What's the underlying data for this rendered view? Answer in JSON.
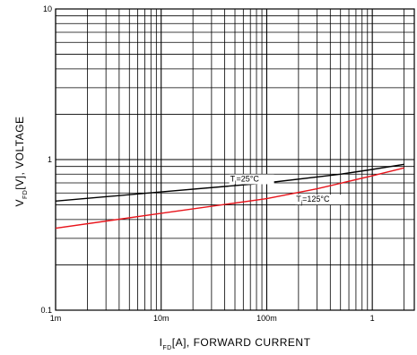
{
  "chart_data": {
    "type": "line",
    "title": "",
    "xlabel": {
      "main": "I",
      "sub": "FD",
      "rest": "[A], FORWARD CURRENT"
    },
    "ylabel": {
      "main": "V",
      "sub": "FD",
      "rest": "[V], VOLTAGE"
    },
    "x_scale": "log",
    "y_scale": "log",
    "xlim": [
      0.001,
      2.5
    ],
    "ylim": [
      0.1,
      10
    ],
    "x_ticks": [
      {
        "value": 0.001,
        "label": "1m"
      },
      {
        "value": 0.01,
        "label": "10m"
      },
      {
        "value": 0.1,
        "label": "100m"
      },
      {
        "value": 1,
        "label": "1"
      }
    ],
    "y_ticks": [
      {
        "value": 0.1,
        "label": "0.1"
      },
      {
        "value": 1,
        "label": "1"
      },
      {
        "value": 10,
        "label": "10"
      }
    ],
    "grid": true,
    "series": [
      {
        "name": "Tj=25°C",
        "color": "#000000",
        "x": [
          0.001,
          0.01,
          0.1,
          0.5,
          1,
          2
        ],
        "y": [
          0.53,
          0.61,
          0.7,
          0.8,
          0.86,
          0.93
        ]
      },
      {
        "name": "Tj=125°C",
        "color": "#e8141b",
        "x": [
          0.001,
          0.01,
          0.1,
          0.3,
          1,
          2
        ],
        "y": [
          0.35,
          0.44,
          0.55,
          0.64,
          0.78,
          0.88
        ]
      }
    ],
    "annotations": [
      {
        "main": "T",
        "sub": "j",
        "rest": "=25°C",
        "series": 0
      },
      {
        "main": "T",
        "sub": "j",
        "rest": "=125°C",
        "series": 1
      }
    ]
  }
}
